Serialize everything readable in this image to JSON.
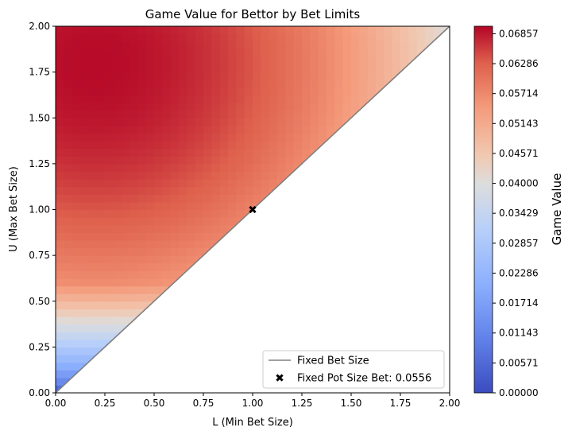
{
  "chart_data": {
    "type": "heatmap",
    "title": "Game Value for Bettor by Bet Limits",
    "xlabel": "L (Min Bet Size)",
    "ylabel": "U (Max Bet Size)",
    "xlim": [
      0,
      2
    ],
    "ylim": [
      0,
      2
    ],
    "x_ticks": [
      "0.00",
      "0.25",
      "0.50",
      "0.75",
      "1.00",
      "1.25",
      "1.50",
      "1.75",
      "2.00"
    ],
    "y_ticks": [
      "0.00",
      "0.25",
      "0.50",
      "0.75",
      "1.00",
      "1.25",
      "1.50",
      "1.75",
      "2.00"
    ],
    "colormap": "coolwarm",
    "colorbar": {
      "label": "Game Value",
      "range": [
        0,
        0.07
      ],
      "ticks": [
        "0.00000",
        "0.00571",
        "0.01143",
        "0.01714",
        "0.02286",
        "0.02857",
        "0.03429",
        "0.04000",
        "0.04571",
        "0.05143",
        "0.05714",
        "0.06286",
        "0.06857"
      ]
    },
    "region": "L <= U (upper-left triangle)",
    "approx_values": [
      {
        "L": 0.0,
        "U": 0.0,
        "value": 0.0
      },
      {
        "L": 0.0,
        "U": 0.25,
        "value": 0.037
      },
      {
        "L": 0.0,
        "U": 0.5,
        "value": 0.05
      },
      {
        "L": 0.0,
        "U": 1.0,
        "value": 0.062
      },
      {
        "L": 0.25,
        "U": 1.75,
        "value": 0.069
      },
      {
        "L": 1.0,
        "U": 1.0,
        "value": 0.0556
      },
      {
        "L": 2.0,
        "U": 2.0,
        "value": 0.048
      }
    ],
    "series": [
      {
        "name": "Fixed Bet Size",
        "type": "line",
        "x": [
          0,
          2
        ],
        "y": [
          0,
          2
        ],
        "color": "#808080"
      },
      {
        "name": "Fixed Pot Size Bet: 0.0556",
        "type": "scatter",
        "marker": "X",
        "x": [
          1.0
        ],
        "y": [
          1.0
        ],
        "color": "#000000"
      }
    ],
    "legend": {
      "placement": "lower-right",
      "entries": [
        "Fixed Bet Size",
        "Fixed Pot Size Bet: 0.0556"
      ]
    }
  }
}
